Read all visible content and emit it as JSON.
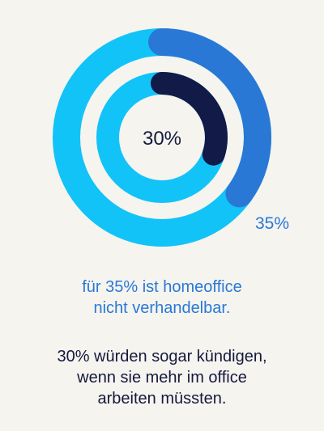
{
  "chart_data": {
    "type": "donut",
    "rings": [
      {
        "ring": "outer",
        "value": 35,
        "label": "35%"
      },
      {
        "ring": "inner",
        "value": 30,
        "label": "30%"
      }
    ]
  },
  "colors": {
    "background": "#f5f4ef",
    "outer_track": "#12c3f7",
    "outer_segment": "#2a78d6",
    "inner_track": "#12c3f7",
    "inner_segment": "#121a47",
    "label_blue": "#2a78d6",
    "label_dark": "#16193d"
  },
  "captions": {
    "blue": [
      "für 35% ist homeoffice",
      "nicht verhandelbar."
    ],
    "dark": [
      "30% würden sogar kündigen,",
      "wenn sie mehr im office",
      "arbeiten müssten."
    ]
  }
}
